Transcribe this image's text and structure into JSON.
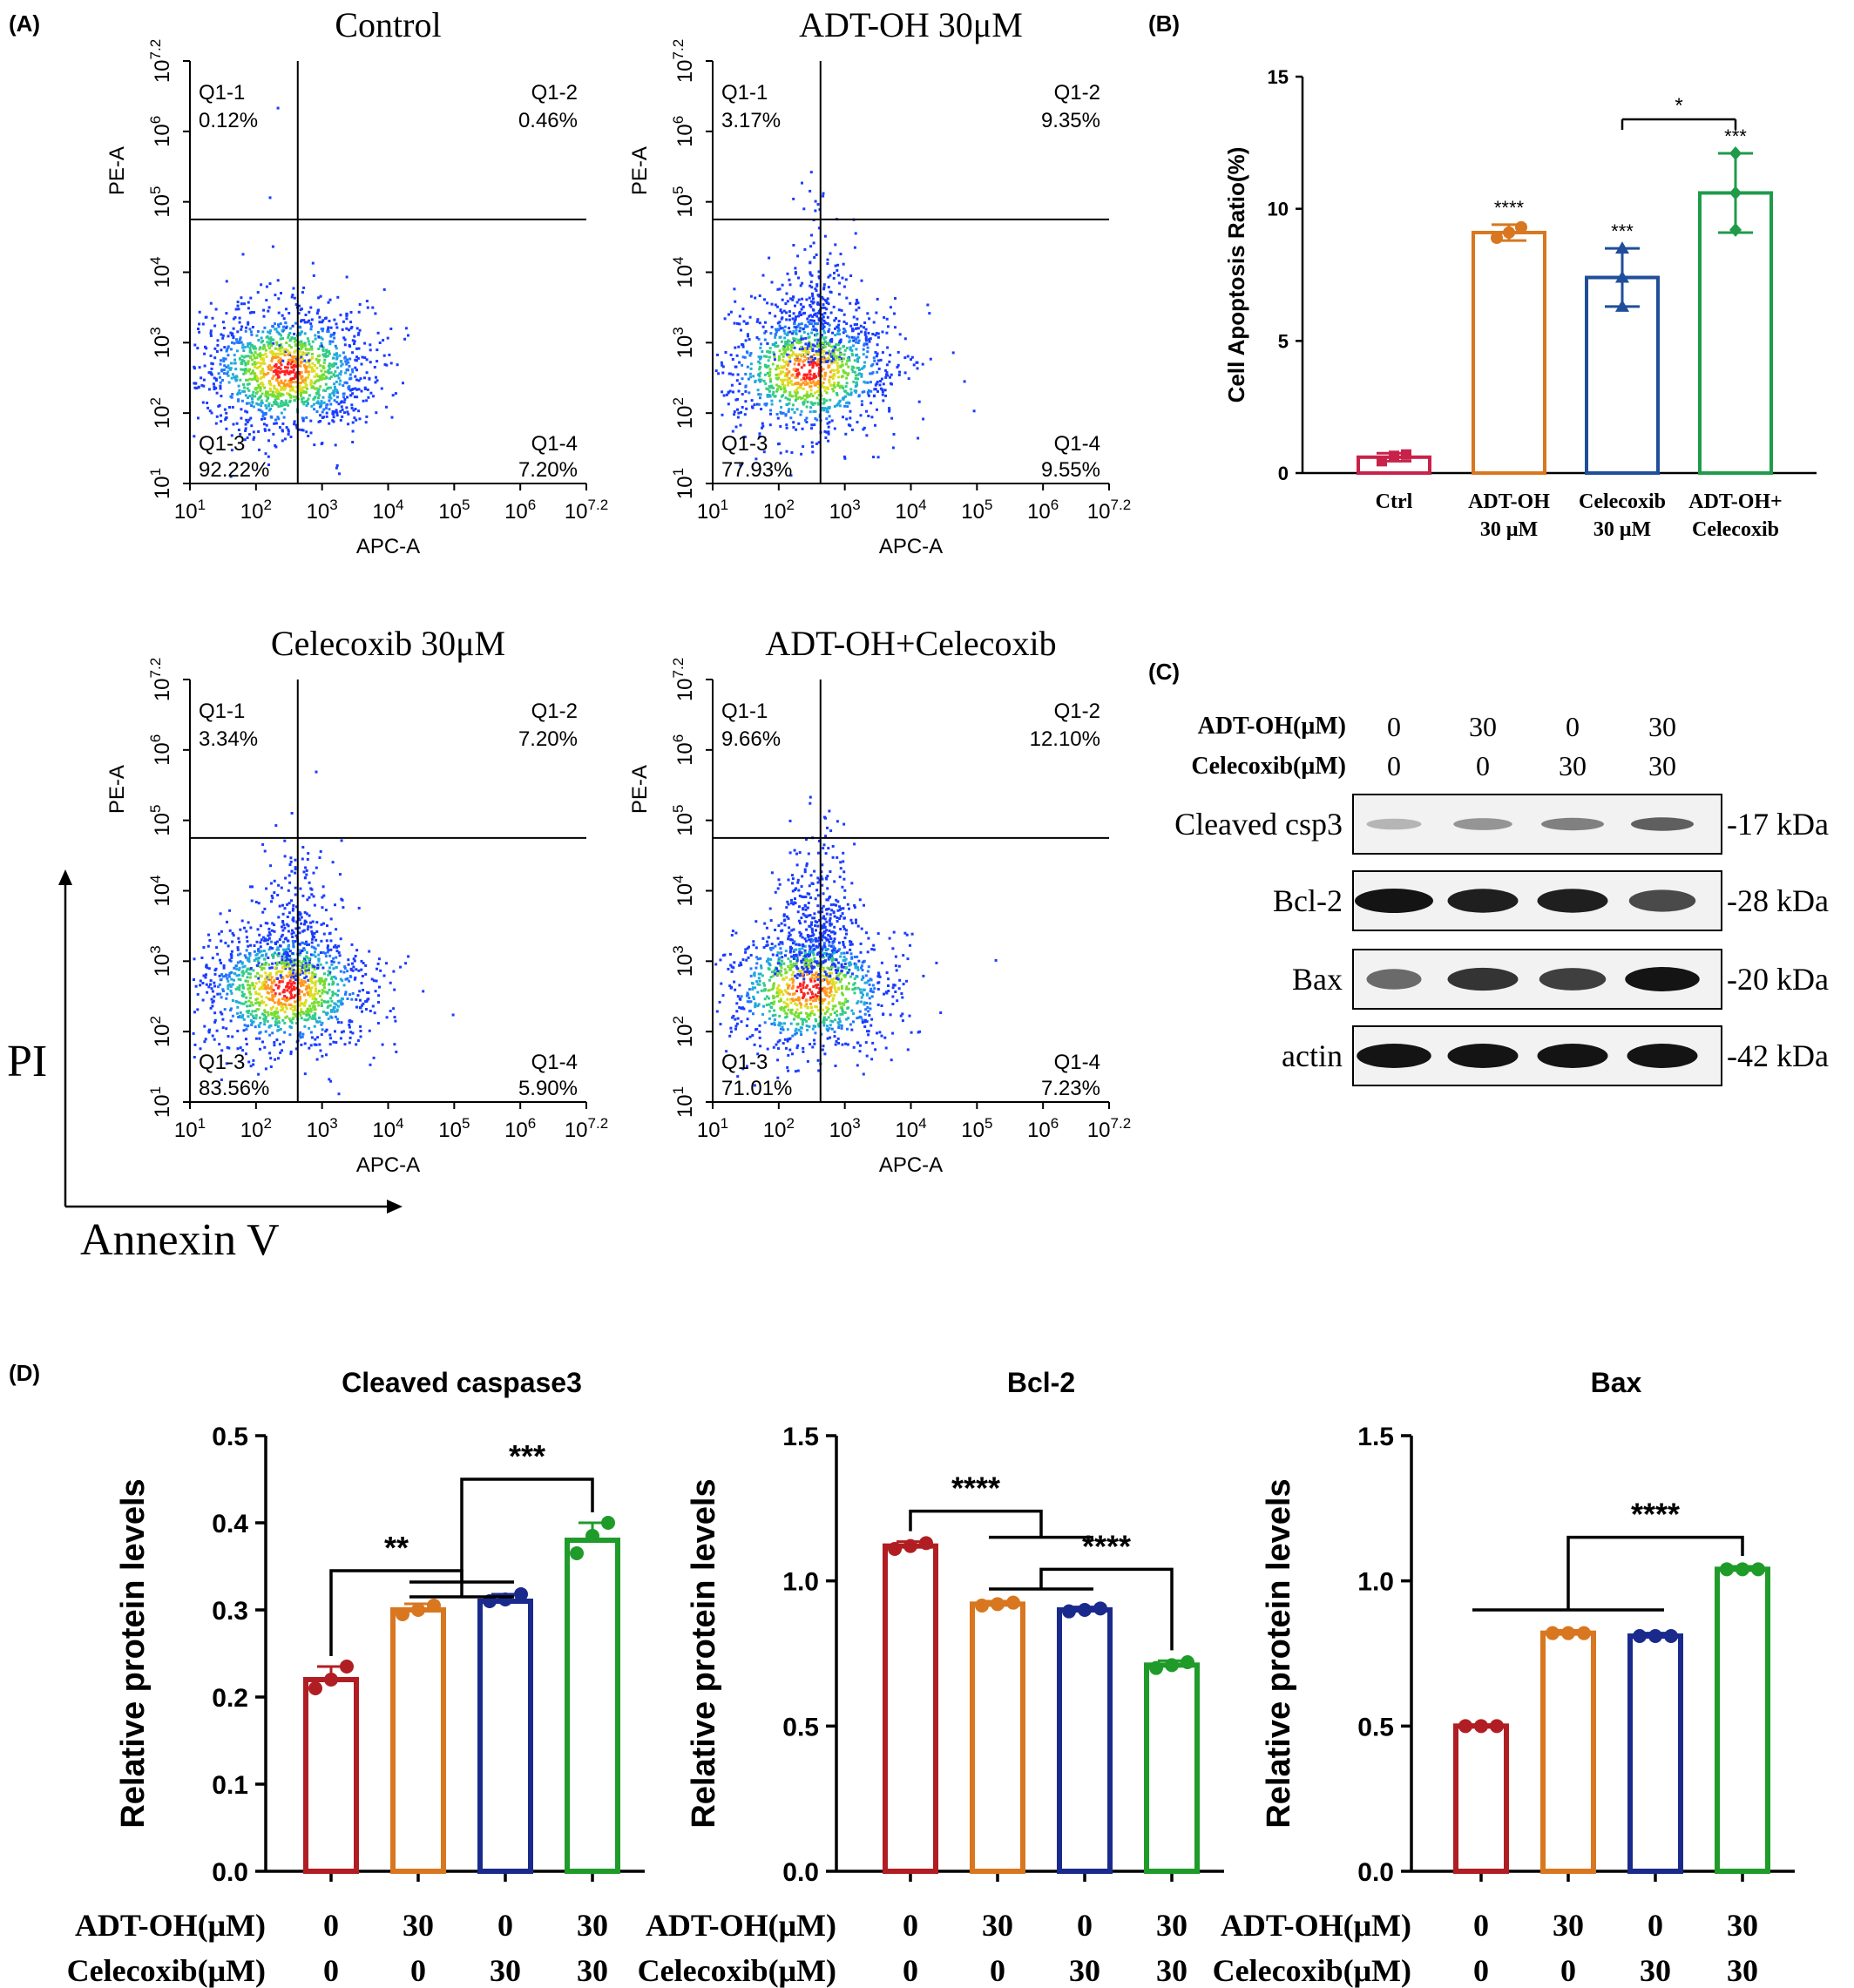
{
  "panels": {
    "A": "(A)",
    "B": "(B)",
    "C": "(C)",
    "D": "(D)"
  },
  "flow": {
    "x_axis_label": "APC-A",
    "y_axis_label": "PE-A",
    "tick_base": "10",
    "x_tick_exponents": [
      "1",
      "2",
      "3",
      "4",
      "5",
      "6",
      "7.2"
    ],
    "y_tick_exponents": [
      "1",
      "2",
      "3",
      "4",
      "5",
      "6",
      "7.2"
    ],
    "plots": [
      {
        "title": "Control",
        "q1": {
          "label": "Q1-1",
          "value": "0.12%"
        },
        "q2": {
          "label": "Q1-2",
          "value": "0.46%"
        },
        "q3": {
          "label": "Q1-3",
          "value": "92.22%"
        },
        "q4": {
          "label": "Q1-4",
          "value": "7.20%"
        }
      },
      {
        "title": "ADT-OH 30μM",
        "q1": {
          "label": "Q1-1",
          "value": "3.17%"
        },
        "q2": {
          "label": "Q1-2",
          "value": "9.35%"
        },
        "q3": {
          "label": "Q1-3",
          "value": "77.93%"
        },
        "q4": {
          "label": "Q1-4",
          "value": "9.55%"
        }
      },
      {
        "title": "Celecoxib 30μM",
        "q1": {
          "label": "Q1-1",
          "value": "3.34%"
        },
        "q2": {
          "label": "Q1-2",
          "value": "7.20%"
        },
        "q3": {
          "label": "Q1-3",
          "value": "83.56%"
        },
        "q4": {
          "label": "Q1-4",
          "value": "5.90%"
        }
      },
      {
        "title": "ADT-OH+Celecoxib",
        "q1": {
          "label": "Q1-1",
          "value": "9.66%"
        },
        "q2": {
          "label": "Q1-2",
          "value": "12.10%"
        },
        "q3": {
          "label": "Q1-3",
          "value": "71.01%"
        },
        "q4": {
          "label": "Q1-4",
          "value": "7.23%"
        }
      }
    ],
    "axis_pi": "PI",
    "axis_annexin": "Annexin V"
  },
  "chart_data": [
    {
      "type": "bar",
      "panel": "B",
      "ylabel": "Cell Apoptosis Ratio(%)",
      "ylim": [
        0,
        15
      ],
      "yticks": [
        "0",
        "5",
        "10",
        "15"
      ],
      "categories": [
        [
          "Ctrl"
        ],
        [
          "ADT-OH",
          "30 μM"
        ],
        [
          "Celecoxib",
          "30 μM"
        ],
        [
          "ADT-OH+",
          "Celecoxib"
        ]
      ],
      "values": [
        0.6,
        9.1,
        7.4,
        10.6
      ],
      "errors": [
        0.15,
        0.3,
        1.1,
        1.5
      ],
      "points": [
        [
          0.45,
          0.65,
          0.7
        ],
        [
          8.9,
          9.1,
          9.3
        ],
        [
          6.3,
          7.4,
          8.5
        ],
        [
          9.2,
          10.6,
          12.1
        ]
      ],
      "colors": [
        "#c8224b",
        "#d8771f",
        "#1f4e9a",
        "#1f9b4a"
      ],
      "significance": [
        "",
        "****",
        "***",
        "***"
      ],
      "bracket": {
        "from": 2,
        "to": 3,
        "label": "*"
      }
    },
    {
      "type": "bar",
      "panel": "D",
      "title": "Cleaved caspase3",
      "ylabel": "Relative protein levels",
      "ylim": [
        0,
        0.5
      ],
      "yticks": [
        "0.0",
        "0.1",
        "0.2",
        "0.3",
        "0.4",
        "0.5"
      ],
      "values": [
        0.22,
        0.3,
        0.31,
        0.38
      ],
      "errors": [
        0.015,
        0.007,
        0.008,
        0.02
      ],
      "points": [
        [
          0.21,
          0.22,
          0.235
        ],
        [
          0.295,
          0.3,
          0.305
        ],
        [
          0.31,
          0.312,
          0.318
        ],
        [
          0.365,
          0.385,
          0.4
        ]
      ],
      "colors": [
        "#b01e23",
        "#d8771f",
        "#1a2a8c",
        "#1f9b2a"
      ],
      "brackets": [
        {
          "type": "one-to-pair",
          "left": 0,
          "right": [
            1,
            2
          ],
          "height": 0.345,
          "label": "**"
        },
        {
          "type": "pair-to-one",
          "left": [
            1,
            2
          ],
          "right": 3,
          "height": 0.45,
          "label": "***"
        }
      ]
    },
    {
      "type": "bar",
      "panel": "D",
      "title": "Bcl-2",
      "ylabel": "Relative protein levels",
      "ylim": [
        0,
        1.5
      ],
      "yticks": [
        "0.0",
        "0.5",
        "1.0",
        "1.5"
      ],
      "values": [
        1.12,
        0.92,
        0.9,
        0.71
      ],
      "errors": [
        0.015,
        0.01,
        0.01,
        0.015
      ],
      "points": [
        [
          1.11,
          1.12,
          1.13
        ],
        [
          0.915,
          0.92,
          0.925
        ],
        [
          0.895,
          0.9,
          0.905
        ],
        [
          0.7,
          0.71,
          0.72
        ]
      ],
      "colors": [
        "#b01e23",
        "#d8771f",
        "#1a2a8c",
        "#1f9b2a"
      ],
      "brackets": [
        {
          "type": "one-to-pair",
          "left": 0,
          "right": [
            1,
            2
          ],
          "height": 1.24,
          "label": "****"
        },
        {
          "type": "pair-to-one",
          "left": [
            1,
            2
          ],
          "right": 3,
          "height": 1.04,
          "label": "****"
        }
      ]
    },
    {
      "type": "bar",
      "panel": "D",
      "title": "Bax",
      "ylabel": "Relative protein levels",
      "ylim": [
        0,
        1.5
      ],
      "yticks": [
        "0.0",
        "0.5",
        "1.0",
        "1.5"
      ],
      "values": [
        0.5,
        0.82,
        0.81,
        1.04
      ],
      "errors": [
        0.005,
        0.01,
        0.01,
        0.01
      ],
      "points": [
        [
          0.5,
          0.5,
          0.5
        ],
        [
          0.82,
          0.82,
          0.82
        ],
        [
          0.81,
          0.81,
          0.81
        ],
        [
          1.04,
          1.04,
          1.04
        ]
      ],
      "colors": [
        "#b01e23",
        "#d8771f",
        "#1a2a8c",
        "#1f9b2a"
      ],
      "brackets": [
        {
          "type": "triple-to-one",
          "left": [
            0,
            1,
            2
          ],
          "right": 3,
          "height": 1.15,
          "label": "****"
        }
      ]
    }
  ],
  "conditions": {
    "adt_label": "ADT-OH(μM)",
    "cel_label": "Celecoxib(μM)",
    "adt_values": [
      "0",
      "30",
      "0",
      "30"
    ],
    "cel_values": [
      "0",
      "0",
      "30",
      "30"
    ]
  },
  "western": {
    "bands": [
      {
        "name": "Cleaved csp3",
        "kda": "-17 kDa"
      },
      {
        "name": "Bcl-2",
        "kda": "-28 kDa"
      },
      {
        "name": "Bax",
        "kda": "-20 kDa"
      },
      {
        "name": "actin",
        "kda": "-42 kDa"
      }
    ]
  }
}
